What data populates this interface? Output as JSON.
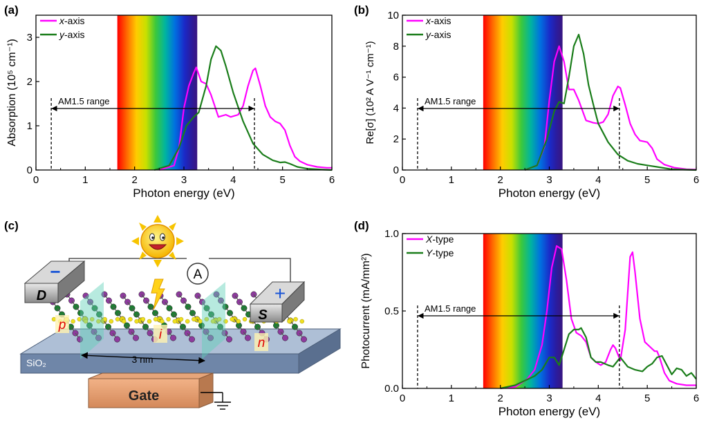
{
  "panels": {
    "a": {
      "label": "(a)",
      "xlabel": "Photon energy (eV)",
      "ylabel": "Absorption (10⁵ cm⁻¹)",
      "xticks": [
        "0",
        "1",
        "2",
        "3",
        "4",
        "5",
        "6"
      ],
      "yticks": [
        "0",
        "1",
        "2",
        "3"
      ],
      "legend": [
        "x-axis",
        "y-axis"
      ],
      "range_label": "AM1.5 range"
    },
    "b": {
      "label": "(b)",
      "xlabel": "Photon energy (eV)",
      "ylabel": "Re[σ] (10² A V⁻¹ cm⁻¹)",
      "xticks": [
        "0",
        "1",
        "2",
        "3",
        "4",
        "5",
        "6"
      ],
      "yticks": [
        "0",
        "2",
        "4",
        "6",
        "8",
        "10"
      ],
      "legend": [
        "x-axis",
        "y-axis"
      ],
      "range_label": "AM1.5 range"
    },
    "c": {
      "label": "(c)",
      "electrode_d": "D",
      "electrode_s": "S",
      "ammeter": "A",
      "minus": "−",
      "plus": "+",
      "p_region": "p",
      "i_region": "i",
      "n_region": "n",
      "substrate": "SiO₂",
      "length": "3 nm",
      "gate": "Gate"
    },
    "d": {
      "label": "(d)",
      "xlabel": "Photon energy (eV)",
      "ylabel": "Photocurrent (mA/mm²)",
      "xticks": [
        "0",
        "1",
        "2",
        "3",
        "4",
        "5",
        "6"
      ],
      "yticks": [
        "0.0",
        "0.5",
        "1.0"
      ],
      "legend": [
        "X-type",
        "Y-type"
      ],
      "range_label": "AM1.5 range"
    }
  },
  "colors": {
    "magenta": "#ff00ff",
    "green": "#1a7d1a"
  },
  "chart_data": [
    {
      "panel": "a",
      "type": "line",
      "xlim": [
        0,
        6
      ],
      "ylim": [
        0,
        3.5
      ],
      "spectrum_band": [
        1.65,
        3.27
      ],
      "am15_range": [
        0.31,
        4.43
      ],
      "series": [
        {
          "name": "x-axis",
          "color": "#ff00ff",
          "x": [
            2.5,
            2.8,
            2.9,
            3.0,
            3.1,
            3.2,
            3.25,
            3.35,
            3.45,
            3.55,
            3.7,
            3.85,
            3.95,
            4.1,
            4.2,
            4.3,
            4.4,
            4.45,
            4.55,
            4.65,
            4.75,
            4.85,
            4.95,
            5.05,
            5.15,
            5.25,
            5.35,
            5.5,
            5.7,
            5.9,
            6.0
          ],
          "y": [
            0.0,
            0.1,
            0.5,
            1.4,
            1.9,
            2.2,
            2.32,
            2.0,
            1.95,
            1.7,
            1.2,
            1.25,
            1.2,
            1.25,
            1.45,
            1.9,
            2.25,
            2.3,
            1.9,
            1.45,
            1.2,
            1.1,
            1.05,
            0.9,
            0.55,
            0.3,
            0.2,
            0.12,
            0.07,
            0.05,
            0.05
          ]
        },
        {
          "name": "y-axis",
          "color": "#1a7d1a",
          "x": [
            2.4,
            2.7,
            2.9,
            3.05,
            3.2,
            3.3,
            3.45,
            3.55,
            3.65,
            3.75,
            3.85,
            4.0,
            4.2,
            4.4,
            4.6,
            4.8,
            4.95,
            5.05,
            5.15,
            5.3,
            5.5,
            5.8,
            6.0
          ],
          "y": [
            0.0,
            0.1,
            0.5,
            1.0,
            1.2,
            1.3,
            1.9,
            2.5,
            2.8,
            2.7,
            2.35,
            1.75,
            1.1,
            0.6,
            0.35,
            0.22,
            0.17,
            0.18,
            0.14,
            0.07,
            0.03,
            0.01,
            0.0
          ]
        }
      ]
    },
    {
      "panel": "b",
      "type": "line",
      "xlim": [
        0,
        6
      ],
      "ylim": [
        0,
        10
      ],
      "spectrum_band": [
        1.65,
        3.27
      ],
      "am15_range": [
        0.31,
        4.43
      ],
      "series": [
        {
          "name": "x-axis",
          "color": "#ff00ff",
          "x": [
            2.5,
            2.75,
            2.9,
            3.0,
            3.1,
            3.2,
            3.3,
            3.4,
            3.5,
            3.6,
            3.75,
            3.9,
            4.0,
            4.1,
            4.2,
            4.3,
            4.4,
            4.45,
            4.55,
            4.65,
            4.75,
            4.85,
            5.0,
            5.1,
            5.2,
            5.35,
            5.55,
            5.8,
            6.0
          ],
          "y": [
            0.0,
            0.3,
            1.5,
            4.5,
            7.0,
            8.0,
            7.0,
            5.2,
            5.2,
            4.5,
            3.2,
            3.05,
            3.0,
            3.1,
            3.6,
            4.8,
            5.4,
            5.3,
            4.2,
            3.0,
            2.3,
            1.9,
            1.8,
            1.4,
            0.7,
            0.35,
            0.15,
            0.05,
            0.03
          ]
        },
        {
          "name": "y-axis",
          "color": "#1a7d1a",
          "x": [
            2.5,
            2.75,
            2.95,
            3.1,
            3.2,
            3.3,
            3.4,
            3.5,
            3.6,
            3.7,
            3.8,
            3.9,
            4.0,
            4.2,
            4.4,
            4.6,
            4.8,
            5.0,
            5.2,
            5.5,
            6.0
          ],
          "y": [
            0.0,
            0.3,
            2.0,
            3.8,
            4.4,
            4.3,
            6.0,
            8.0,
            8.75,
            7.5,
            5.5,
            4.2,
            3.0,
            1.8,
            1.0,
            0.6,
            0.4,
            0.3,
            0.2,
            0.05,
            0.0
          ]
        }
      ]
    },
    {
      "panel": "d",
      "type": "line",
      "xlim": [
        0,
        6
      ],
      "ylim": [
        0,
        1.0
      ],
      "spectrum_band": [
        1.65,
        3.27
      ],
      "am15_range": [
        0.31,
        4.43
      ],
      "series": [
        {
          "name": "X-type",
          "color": "#ff00ff",
          "x": [
            2.0,
            2.3,
            2.55,
            2.7,
            2.85,
            2.95,
            3.05,
            3.15,
            3.25,
            3.35,
            3.45,
            3.55,
            3.65,
            3.75,
            3.85,
            3.95,
            4.05,
            4.15,
            4.25,
            4.3,
            4.35,
            4.45,
            4.55,
            4.65,
            4.7,
            4.75,
            4.85,
            4.95,
            5.05,
            5.15,
            5.2,
            5.25,
            5.35,
            5.45,
            5.6,
            5.8,
            6.0
          ],
          "y": [
            0.0,
            0.01,
            0.06,
            0.12,
            0.28,
            0.5,
            0.78,
            0.92,
            0.9,
            0.7,
            0.45,
            0.36,
            0.34,
            0.3,
            0.2,
            0.17,
            0.15,
            0.17,
            0.25,
            0.28,
            0.26,
            0.18,
            0.38,
            0.85,
            0.88,
            0.75,
            0.45,
            0.3,
            0.27,
            0.24,
            0.24,
            0.2,
            0.1,
            0.05,
            0.03,
            0.02,
            0.02
          ]
        },
        {
          "name": "Y-type",
          "color": "#1a7d1a",
          "x": [
            2.0,
            2.3,
            2.5,
            2.7,
            2.85,
            3.0,
            3.1,
            3.2,
            3.3,
            3.4,
            3.5,
            3.6,
            3.65,
            3.75,
            3.85,
            3.95,
            4.05,
            4.2,
            4.3,
            4.45,
            4.6,
            4.75,
            4.9,
            5.0,
            5.1,
            5.2,
            5.3,
            5.4,
            5.5,
            5.6,
            5.7,
            5.8,
            5.9,
            6.0
          ],
          "y": [
            0.0,
            0.02,
            0.05,
            0.08,
            0.12,
            0.2,
            0.2,
            0.15,
            0.25,
            0.35,
            0.38,
            0.38,
            0.39,
            0.33,
            0.2,
            0.17,
            0.17,
            0.15,
            0.14,
            0.2,
            0.14,
            0.12,
            0.11,
            0.14,
            0.16,
            0.2,
            0.21,
            0.15,
            0.09,
            0.13,
            0.12,
            0.08,
            0.1,
            0.06
          ]
        }
      ]
    }
  ]
}
